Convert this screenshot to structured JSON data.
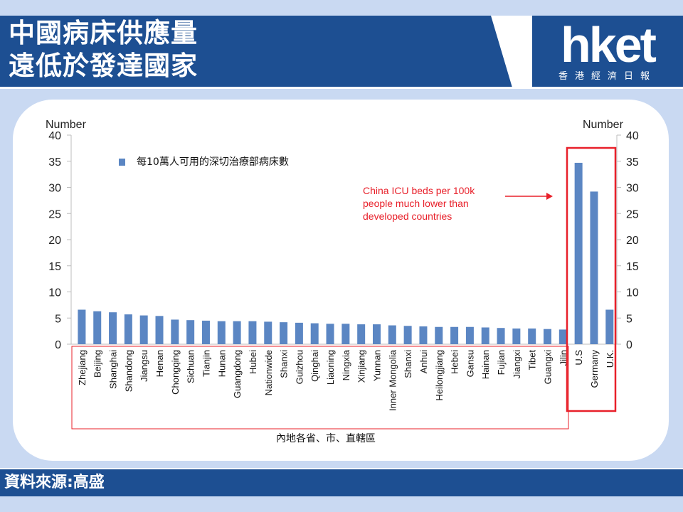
{
  "header": {
    "title_line1": "中國病床供應量",
    "title_line2": "遠低於發達國家"
  },
  "logo": {
    "main": "hket",
    "sub": "香港經濟日報"
  },
  "footer": {
    "source": "資料來源:高盛"
  },
  "chart_data": {
    "type": "bar",
    "ylabel_left": "Number",
    "ylabel_right": "Number",
    "ylim": [
      0,
      40
    ],
    "yticks": [
      0,
      5,
      10,
      15,
      20,
      25,
      30,
      35,
      40
    ],
    "legend_label": "每10萬人可用的深切治療部病床數",
    "annotation": "China ICU beds per 100k people much lower than developed countries",
    "xlabel": "內地各省、市、直轄區",
    "bar_color": "#5b86c3",
    "highlight_color": "#e8202a",
    "categories": [
      "Zhejiang",
      "Beijing",
      "Shanghai",
      "Shandong",
      "Jiangsu",
      "Henan",
      "Chongqing",
      "Sichuan",
      "Tianjin",
      "Hunan",
      "Guangdong",
      "Hubei",
      "Nationwide",
      "Shanxi",
      "Guizhou",
      "Qinghai",
      "Liaoning",
      "Ningxia",
      "Xinjiang",
      "Yunnan",
      "Inner Mongolia",
      "Shanxi",
      "Anhui",
      "Heilongjiang",
      "Hebei",
      "Gansu",
      "Hainan",
      "Fujian",
      "Jiangxi",
      "Tibet",
      "Guangxi",
      "Jilin",
      "U.S",
      "Germany",
      "U.K."
    ],
    "values": [
      6.6,
      6.3,
      6.1,
      5.7,
      5.5,
      5.4,
      4.7,
      4.6,
      4.5,
      4.4,
      4.4,
      4.4,
      4.3,
      4.2,
      4.1,
      4.0,
      3.9,
      3.9,
      3.8,
      3.8,
      3.6,
      3.5,
      3.4,
      3.3,
      3.3,
      3.3,
      3.2,
      3.1,
      3.0,
      3.0,
      2.9,
      2.8,
      34.7,
      29.2,
      6.6
    ]
  }
}
